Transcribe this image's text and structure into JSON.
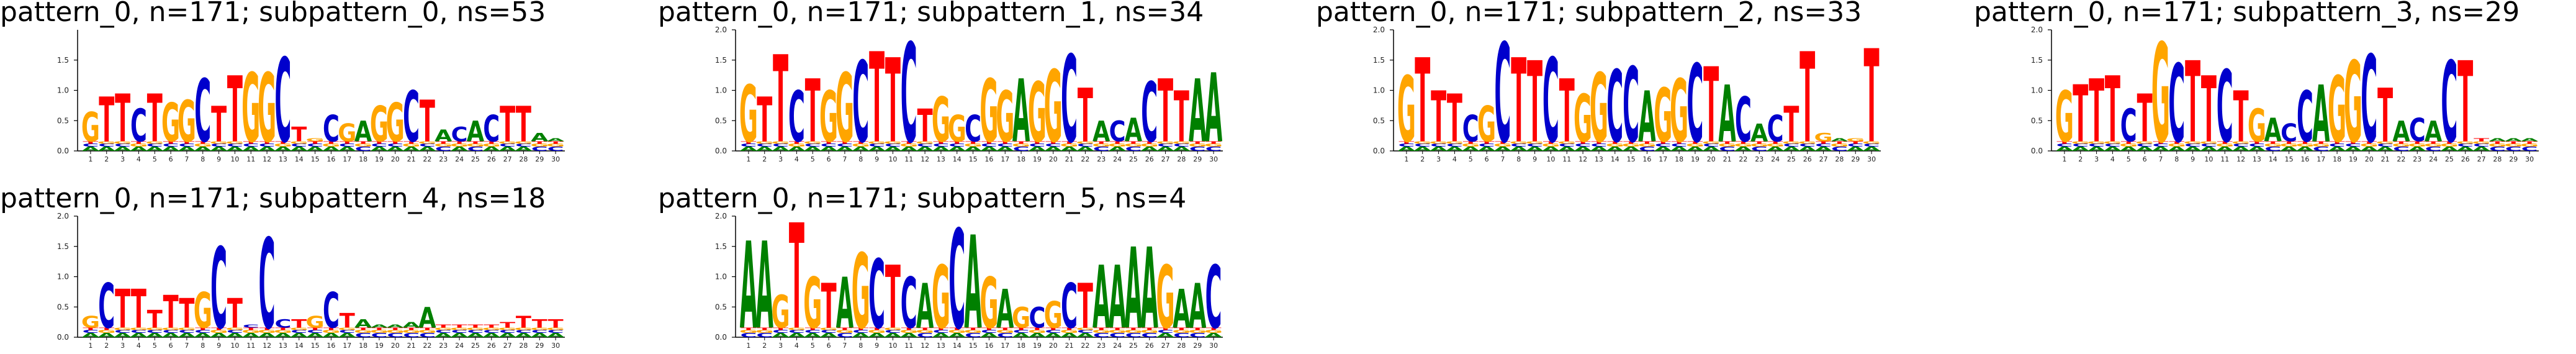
{
  "colors": {
    "A": "#008000",
    "C": "#0000cc",
    "G": "#ffa500",
    "T": "#ff0000",
    "axis": "#000000"
  },
  "chart_data": [
    {
      "type": "sequence-logo",
      "title": "pattern_0, n=171; subpattern_0, ns=53",
      "ylim": [
        0,
        2.0
      ],
      "yticks": [
        "0.0",
        "0.5",
        "1.0",
        "1.5"
      ],
      "positions": [
        "1",
        "2",
        "3",
        "4",
        "5",
        "6",
        "7",
        "8",
        "9",
        "10",
        "11",
        "12",
        "13",
        "14",
        "15",
        "16",
        "17",
        "18",
        "19",
        "20",
        "21",
        "22",
        "23",
        "24",
        "25",
        "26",
        "27",
        "28",
        "29",
        "30"
      ],
      "top": [
        "G",
        "T",
        "T",
        "C",
        "T",
        "G",
        "G",
        "C",
        "T",
        "T",
        "G",
        "G",
        "C",
        "T",
        "G",
        "C",
        "G",
        "A",
        "G",
        "G",
        "C",
        "T",
        "A",
        "C",
        "A",
        "C",
        "T",
        "T",
        "A",
        "A"
      ],
      "heights": [
        0.65,
        0.9,
        0.95,
        0.7,
        0.95,
        0.8,
        0.85,
        1.2,
        0.75,
        1.25,
        1.3,
        1.3,
        1.55,
        0.4,
        0.2,
        0.6,
        0.45,
        0.5,
        0.75,
        0.8,
        1.0,
        0.85,
        0.35,
        0.4,
        0.5,
        0.6,
        0.75,
        0.75,
        0.3,
        0.2
      ]
    },
    {
      "type": "sequence-logo",
      "title": "pattern_0, n=171; subpattern_1, ns=34",
      "ylim": [
        0,
        2.0
      ],
      "yticks": [
        "0.0",
        "0.5",
        "1.0",
        "1.5",
        "2.0"
      ],
      "positions": [
        "1",
        "2",
        "3",
        "4",
        "5",
        "6",
        "7",
        "8",
        "9",
        "10",
        "11",
        "12",
        "13",
        "14",
        "15",
        "16",
        "17",
        "18",
        "19",
        "20",
        "21",
        "22",
        "23",
        "24",
        "25",
        "26",
        "27",
        "28",
        "29",
        "30"
      ],
      "top": [
        "G",
        "T",
        "T",
        "C",
        "T",
        "G",
        "G",
        "C",
        "T",
        "T",
        "C",
        "T",
        "G",
        "G",
        "C",
        "G",
        "G",
        "A",
        "G",
        "G",
        "C",
        "T",
        "A",
        "C",
        "A",
        "C",
        "T",
        "T",
        "A",
        "A"
      ],
      "heights": [
        1.1,
        0.9,
        1.6,
        1.0,
        1.2,
        1.0,
        1.3,
        1.5,
        1.65,
        1.55,
        1.8,
        0.7,
        0.9,
        0.6,
        0.6,
        1.2,
        1.0,
        1.2,
        1.15,
        1.35,
        1.6,
        1.05,
        0.5,
        0.5,
        0.55,
        1.15,
        1.2,
        1.0,
        1.2,
        1.3
      ]
    },
    {
      "type": "sequence-logo",
      "title": "pattern_0, n=171; subpattern_2, ns=33",
      "ylim": [
        0,
        2.0
      ],
      "yticks": [
        "0.0",
        "0.5",
        "1.0",
        "1.5",
        "2.0"
      ],
      "positions": [
        "1",
        "2",
        "3",
        "4",
        "5",
        "6",
        "7",
        "8",
        "9",
        "10",
        "11",
        "12",
        "13",
        "14",
        "15",
        "16",
        "17",
        "18",
        "19",
        "20",
        "21",
        "22",
        "23",
        "24",
        "25",
        "26",
        "27",
        "28",
        "29",
        "30"
      ],
      "top": [
        "G",
        "T",
        "T",
        "T",
        "C",
        "G",
        "C",
        "T",
        "T",
        "C",
        "T",
        "G",
        "G",
        "C",
        "C",
        "A",
        "G",
        "G",
        "C",
        "T",
        "A",
        "C",
        "A",
        "C",
        "T",
        "T",
        "G",
        "A",
        "G",
        "T"
      ],
      "heights": [
        1.25,
        1.55,
        1.0,
        0.95,
        0.6,
        0.75,
        1.8,
        1.55,
        1.5,
        1.55,
        1.2,
        0.95,
        1.3,
        1.35,
        1.4,
        1.0,
        1.05,
        1.2,
        1.45,
        1.4,
        1.1,
        0.9,
        0.45,
        0.6,
        0.75,
        1.65,
        0.3,
        0.2,
        0.2,
        1.7
      ]
    },
    {
      "type": "sequence-logo",
      "title": "pattern_0, n=171; subpattern_3, ns=29",
      "ylim": [
        0,
        2.0
      ],
      "yticks": [
        "0.0",
        "0.5",
        "1.0",
        "1.5",
        "2.0"
      ],
      "positions": [
        "1",
        "2",
        "3",
        "4",
        "5",
        "6",
        "7",
        "8",
        "9",
        "10",
        "11",
        "12",
        "13",
        "14",
        "15",
        "16",
        "17",
        "18",
        "19",
        "20",
        "21",
        "22",
        "23",
        "24",
        "25",
        "26",
        "27",
        "28",
        "29",
        "30"
      ],
      "top": [
        "G",
        "T",
        "T",
        "T",
        "C",
        "T",
        "G",
        "C",
        "T",
        "T",
        "C",
        "T",
        "G",
        "A",
        "C",
        "C",
        "A",
        "G",
        "G",
        "C",
        "T",
        "A",
        "C",
        "A",
        "C",
        "T",
        "T",
        "A",
        "A",
        "A"
      ],
      "heights": [
        1.0,
        1.1,
        1.2,
        1.25,
        0.7,
        0.95,
        1.8,
        1.45,
        1.5,
        1.25,
        1.35,
        1.0,
        0.7,
        0.55,
        0.45,
        1.0,
        1.1,
        1.25,
        1.5,
        1.6,
        1.05,
        0.5,
        0.55,
        0.5,
        1.5,
        1.5,
        0.2,
        0.2,
        0.2,
        0.2
      ]
    },
    {
      "type": "sequence-logo",
      "title": "pattern_0, n=171; subpattern_4, ns=18",
      "ylim": [
        0,
        2.0
      ],
      "yticks": [
        "0.0",
        "0.5",
        "1.0",
        "1.5",
        "2.0"
      ],
      "positions": [
        "1",
        "2",
        "3",
        "4",
        "5",
        "6",
        "7",
        "8",
        "9",
        "10",
        "11",
        "12",
        "13",
        "14",
        "15",
        "16",
        "17",
        "18",
        "19",
        "20",
        "21",
        "22",
        "23",
        "24",
        "25",
        "26",
        "27",
        "28",
        "29",
        "30"
      ],
      "top": [
        "G",
        "C",
        "T",
        "T",
        "T",
        "T",
        "T",
        "G",
        "C",
        "T",
        "C",
        "C",
        "C",
        "T",
        "G",
        "C",
        "T",
        "A",
        "A",
        "A",
        "A",
        "A",
        "T",
        "T",
        "T",
        "T",
        "T",
        "T",
        "T",
        "T"
      ],
      "heights": [
        0.35,
        0.9,
        0.8,
        0.8,
        0.45,
        0.7,
        0.65,
        0.75,
        1.5,
        0.65,
        0.2,
        1.65,
        0.3,
        0.3,
        0.35,
        0.75,
        0.4,
        0.3,
        0.1,
        0.1,
        0.25,
        0.5,
        0.2,
        0.15,
        0.15,
        0.2,
        0.25,
        0.35,
        0.3,
        0.3
      ]
    },
    {
      "type": "sequence-logo",
      "title": "pattern_0, n=171; subpattern_5, ns=4",
      "ylim": [
        0,
        2.0
      ],
      "yticks": [
        "0.0",
        "0.5",
        "1.0",
        "1.5",
        "2.0"
      ],
      "positions": [
        "1",
        "2",
        "3",
        "4",
        "5",
        "6",
        "7",
        "8",
        "9",
        "10",
        "11",
        "12",
        "13",
        "14",
        "15",
        "16",
        "17",
        "18",
        "19",
        "20",
        "21",
        "22",
        "23",
        "24",
        "25",
        "26",
        "27",
        "28",
        "29",
        "30"
      ],
      "top": [
        "A",
        "A",
        "G",
        "T",
        "G",
        "T",
        "A",
        "G",
        "C",
        "T",
        "C",
        "A",
        "G",
        "C",
        "A",
        "G",
        "A",
        "G",
        "C",
        "G",
        "C",
        "T",
        "A",
        "A",
        "A",
        "A",
        "G",
        "A",
        "A",
        "C"
      ],
      "heights": [
        1.6,
        1.6,
        0.7,
        1.9,
        1.0,
        0.9,
        1.0,
        1.4,
        1.3,
        1.2,
        1.0,
        0.9,
        1.2,
        1.8,
        1.7,
        1.0,
        0.8,
        0.5,
        0.5,
        0.6,
        0.9,
        0.9,
        1.2,
        1.2,
        1.5,
        1.5,
        1.2,
        0.8,
        0.9,
        1.2
      ]
    }
  ]
}
